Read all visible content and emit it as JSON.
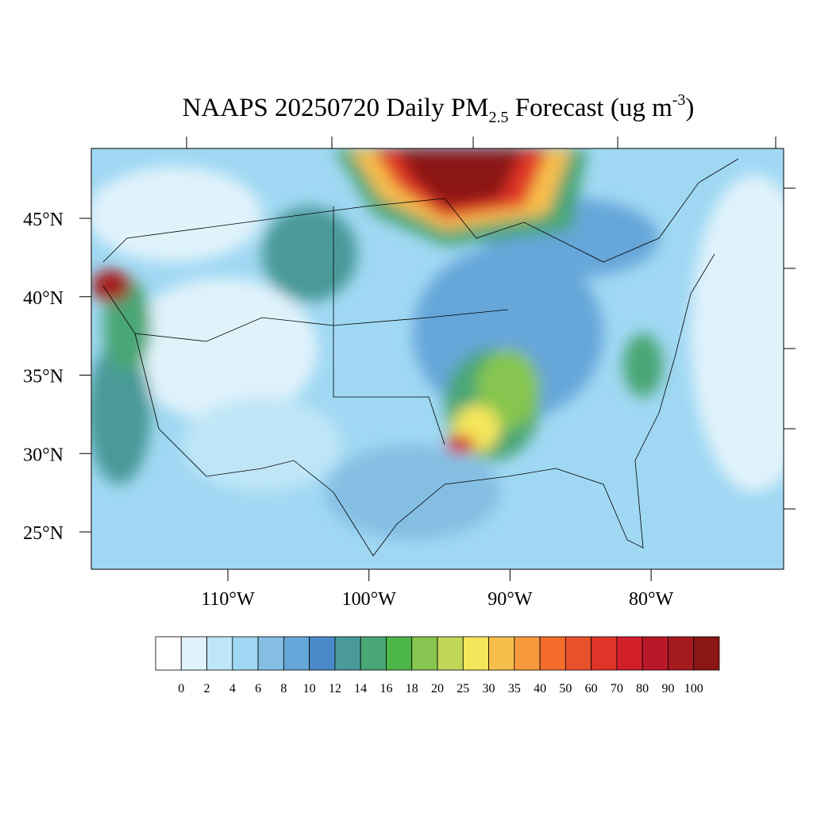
{
  "title": {
    "main": "NAAPS 20250720 Daily PM",
    "subscript": "2.5",
    "rest": " Forecast (ug m",
    "superscript": "-3",
    "close": ")"
  },
  "map": {
    "lat_ticks": [
      {
        "value": 45,
        "label": "45°N"
      },
      {
        "value": 40,
        "label": "40°N"
      },
      {
        "value": 35,
        "label": "35°N"
      },
      {
        "value": 30,
        "label": "30°N"
      },
      {
        "value": 25,
        "label": "25°N"
      }
    ],
    "lon_ticks": [
      {
        "value": -110,
        "label": "110°W"
      },
      {
        "value": -100,
        "label": "100°W"
      },
      {
        "value": -90,
        "label": "90°W"
      },
      {
        "value": -80,
        "label": "80°W"
      }
    ]
  },
  "colorbar": {
    "levels": [
      0,
      2,
      4,
      6,
      8,
      10,
      12,
      14,
      16,
      18,
      20,
      25,
      30,
      35,
      40,
      50,
      60,
      70,
      80,
      90,
      100
    ],
    "colors": [
      "#ffffff",
      "#e0f3fb",
      "#bfe6f7",
      "#a0d8f3",
      "#84bfe3",
      "#66a6d9",
      "#4a8ac8",
      "#4a9a99",
      "#4aa674",
      "#4db649",
      "#86c54f",
      "#c1d657",
      "#f6e65b",
      "#f8be4c",
      "#f79a3e",
      "#f36c2c",
      "#e8522b",
      "#e03428",
      "#d11f2a",
      "#b8182a",
      "#a41a1f",
      "#8c1515"
    ]
  }
}
